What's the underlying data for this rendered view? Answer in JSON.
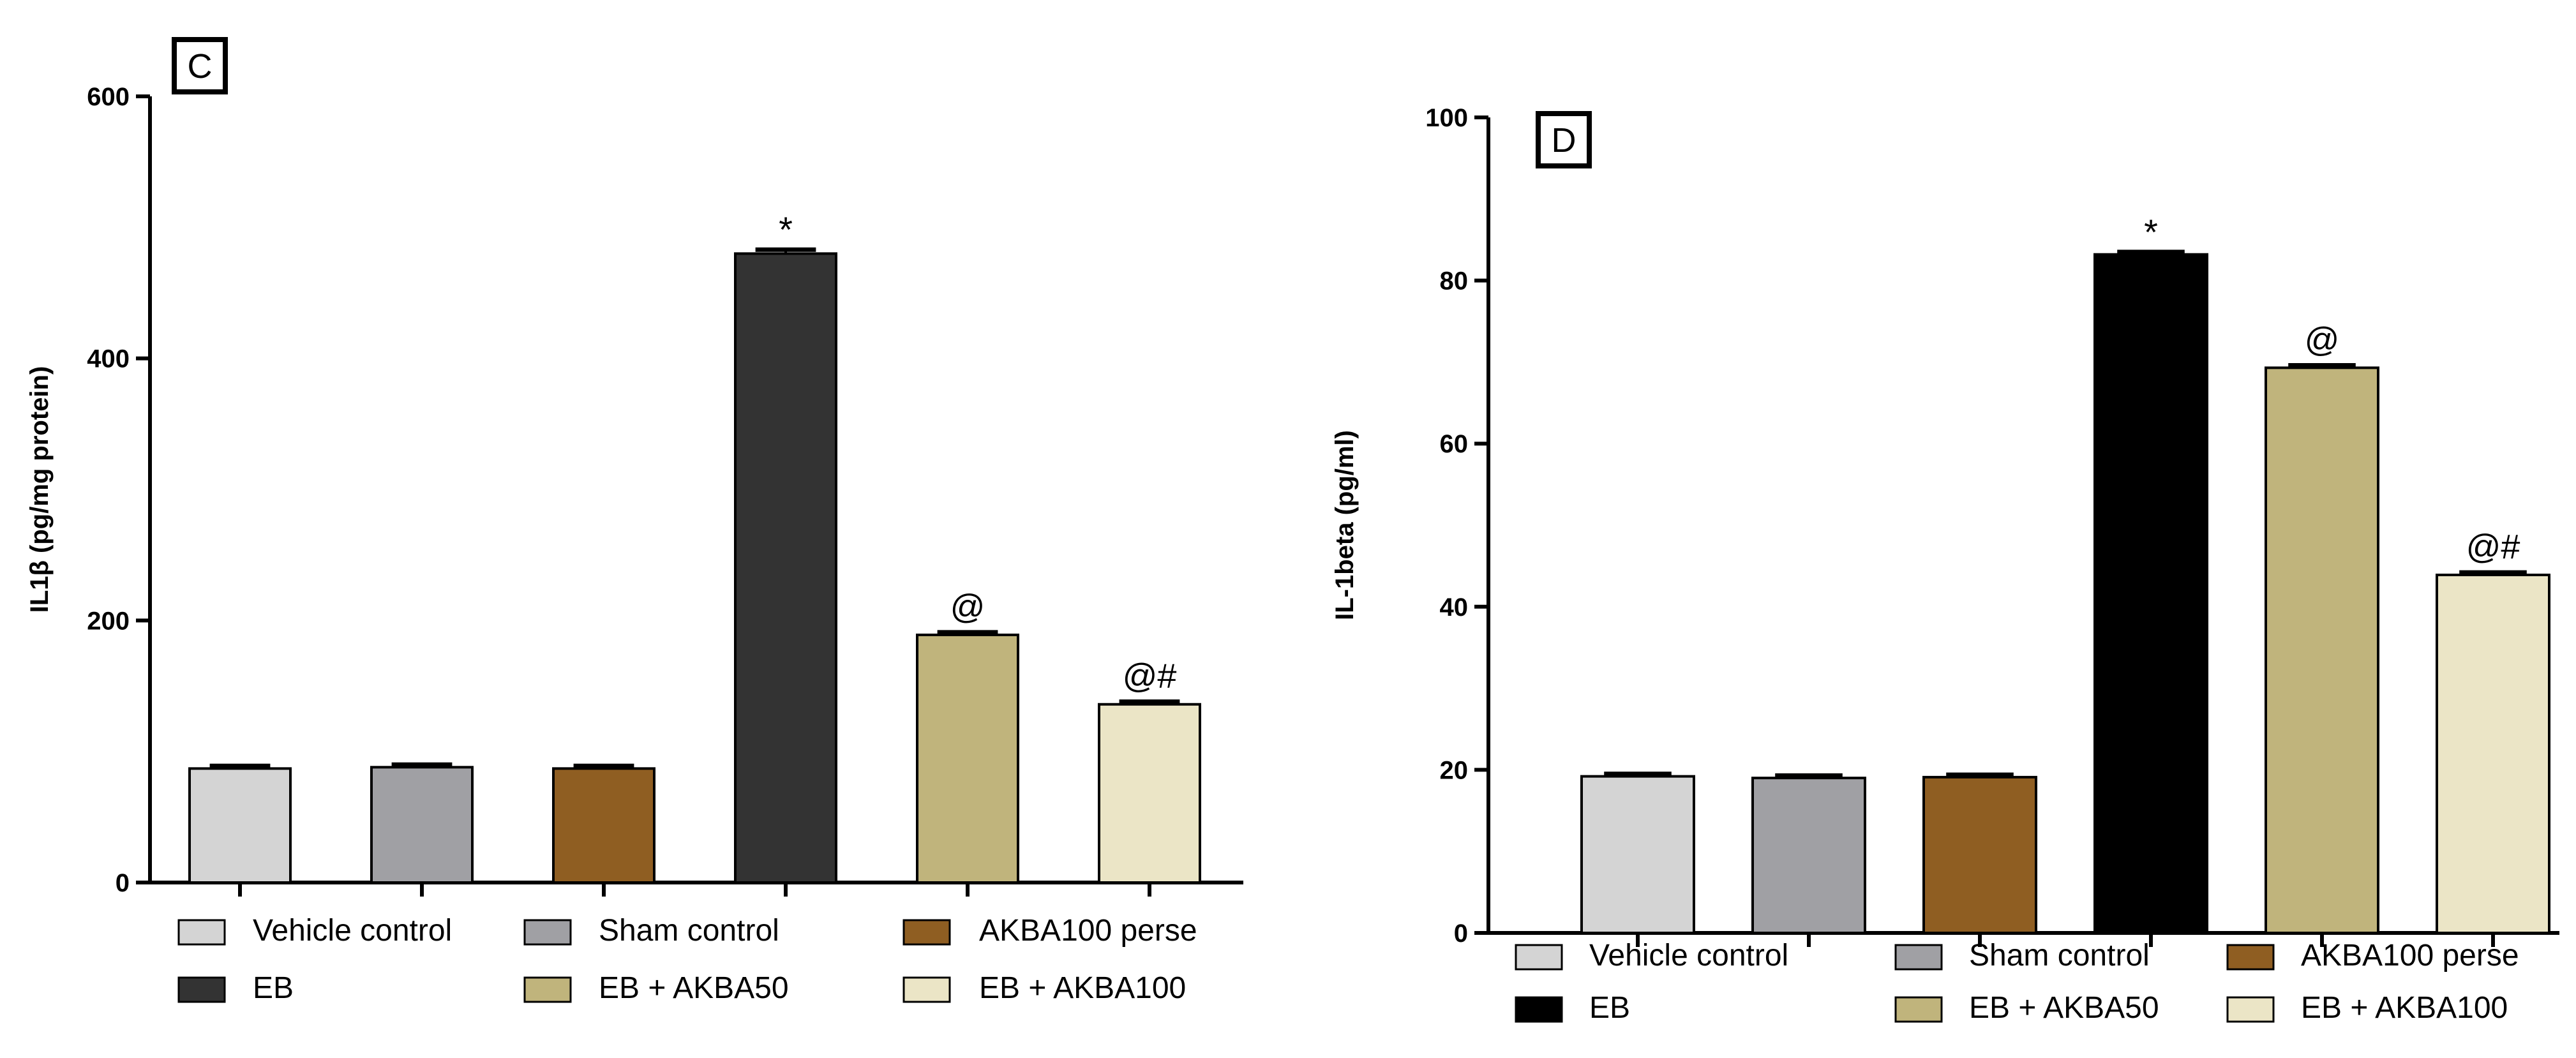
{
  "chart_data": [
    {
      "type": "bar",
      "panel_label": "C",
      "title": "",
      "xlabel": "",
      "ylabel": "IL1β (pg/mg protein)",
      "ylim": [
        0,
        600
      ],
      "yticks": [
        0,
        200,
        400,
        600
      ],
      "categories": [
        "Vehicle control",
        "Sham control",
        "AKBA100 perse",
        "EB",
        "EB + AKBA50",
        "EB + AKBA100"
      ],
      "values": [
        87,
        88,
        87,
        480,
        189,
        136
      ],
      "errors": [
        2,
        2,
        2,
        3,
        2,
        2
      ],
      "annotations": [
        "",
        "",
        "",
        "*",
        "@",
        "@#"
      ],
      "colors": [
        "#d4d4d4",
        "#a0a0a4",
        "#8f5e22",
        "#333333",
        "#c0b47c",
        "#ebe5c6"
      ],
      "legend": [
        {
          "label": "Vehicle control",
          "color": "#d4d4d4"
        },
        {
          "label": "Sham control",
          "color": "#a0a0a4"
        },
        {
          "label": "AKBA100 perse",
          "color": "#8f5e22"
        },
        {
          "label": "EB",
          "color": "#333333"
        },
        {
          "label": "EB + AKBA50",
          "color": "#c0b47c"
        },
        {
          "label": "EB + AKBA100",
          "color": "#ebe5c6"
        }
      ],
      "legend_position": "bottom"
    },
    {
      "type": "bar",
      "panel_label": "D",
      "title": "",
      "xlabel": "",
      "ylabel": "IL-1beta (pg/ml)",
      "ylim": [
        0,
        100
      ],
      "yticks": [
        0,
        20,
        40,
        60,
        80,
        100
      ],
      "categories": [
        "Vehicle control",
        "Sham control",
        "AKBA100 perse",
        "EB",
        "EB + AKBA50",
        "EB + AKBA100"
      ],
      "values": [
        19.2,
        19.0,
        19.1,
        83.2,
        69.3,
        43.9
      ],
      "errors": [
        0.3,
        0.3,
        0.3,
        0.3,
        0.3,
        0.3
      ],
      "annotations": [
        "",
        "",
        "",
        "*",
        "@",
        "@#"
      ],
      "colors": [
        "#d4d4d4",
        "#a0a0a4",
        "#8f5e22",
        "#000000",
        "#c0b47c",
        "#ebe5c6"
      ],
      "legend": [
        {
          "label": "Vehicle control",
          "color": "#d4d4d4"
        },
        {
          "label": "Sham control",
          "color": "#a0a0a4"
        },
        {
          "label": "AKBA100 perse",
          "color": "#8f5e22"
        },
        {
          "label": "EB",
          "color": "#000000"
        },
        {
          "label": "EB + AKBA50",
          "color": "#c0b47c"
        },
        {
          "label": "EB + AKBA100",
          "color": "#ebe5c6"
        }
      ],
      "legend_position": "bottom"
    }
  ]
}
